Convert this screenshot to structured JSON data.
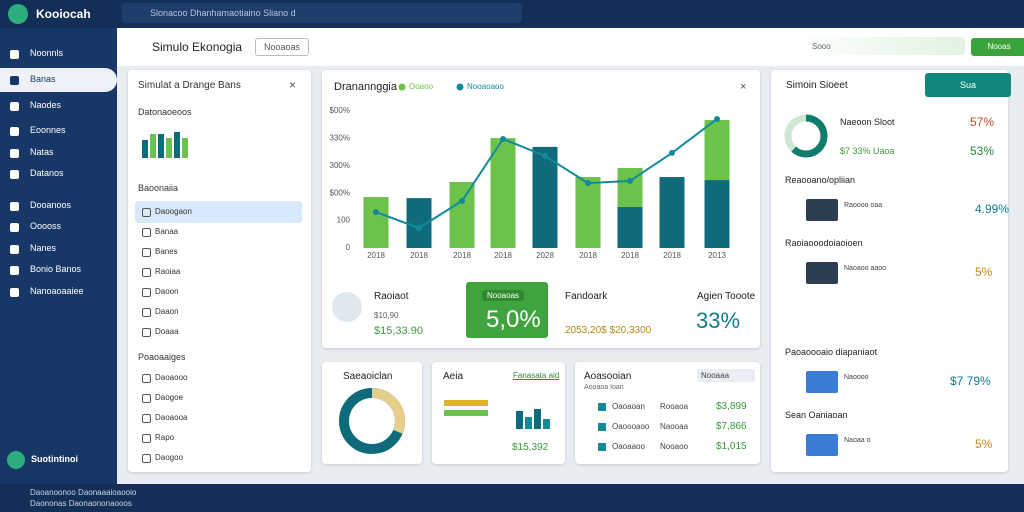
{
  "sidebar": {
    "logo": "Kooiocah",
    "nav": [
      "Noonnls",
      "Banas",
      "Naodes",
      "Eoonnes",
      "Natas",
      "Datanos",
      "Dooanoos",
      "Ooooss",
      "Nanes",
      "Bonio Banos",
      "Nanoaoaaiee"
    ],
    "footer_item": "Suotintinoi"
  },
  "topbar": {
    "search": "Slonacoo Dhanhamaotiaino Sliano d"
  },
  "header": {
    "title": "Simulo Ekonogia",
    "button": "Nooaoas",
    "search": "Sooo",
    "action": "Nooas"
  },
  "left_panel": {
    "title": "Simulat a Drange Bans",
    "section1": "Datonaoeoos",
    "section2": "Baoonaiia",
    "items": [
      "Daoogaon",
      "Banaa",
      "Banes",
      "Raoiaa",
      "Daoon",
      "Daaon",
      "Doaaa"
    ],
    "section3": "Poaoaaiges",
    "items2": [
      "Daoaooo",
      "Daogoe",
      "Daoaooa",
      "Rapo",
      "Daogoo"
    ]
  },
  "chart_data": {
    "type": "bar",
    "title": "Dranannggia",
    "categories": [
      "2018",
      "2018",
      "2018",
      "2018",
      "2028",
      "2018",
      "2018",
      "2018",
      "2013"
    ],
    "series": [
      {
        "name": "Ooaoo",
        "color": "#6cc24a",
        "values": [
          186,
          null,
          241,
          401,
          null,
          259,
          142,
          null,
          219
        ]
      },
      {
        "color": "#0f6b7c",
        "values": [
          null,
          182,
          null,
          null,
          369,
          null,
          150,
          259,
          248
        ]
      },
      {
        "name": "Nooaoaoo",
        "color": "#138a9a",
        "kind": "line",
        "values": [
          131,
          73,
          172,
          398,
          336,
          237,
          245,
          347,
          471
        ]
      }
    ],
    "ylim": [
      0,
      500
    ],
    "yticks": [
      0,
      100,
      {
        "value": 200,
        "label": "$00%"
      },
      {
        "value": 300,
        "label": "300%"
      },
      {
        "value": 400,
        "label": "330%"
      },
      {
        "value": 500,
        "label": "$00%"
      }
    ]
  },
  "stats": [
    {
      "label": "Raoiaot",
      "value": "$15,33.90",
      "sub": "$10,90"
    },
    {
      "label": "Nooaoas",
      "value": "5,0%"
    },
    {
      "label": "Fandoark",
      "value": "2053,20$ $20,3300"
    },
    {
      "label": "Agien Tooote",
      "value": "33%"
    }
  ],
  "cards": {
    "donut": "Saeaoiclan",
    "area": {
      "title": "Aeia",
      "link": "Fanasata aid",
      "value": "$15,392"
    },
    "accounts": {
      "title": "Aoasooian",
      "select": "Nooaaa",
      "sub": "Aooaoa Ioan",
      "rows": [
        [
          "Oaoaoan",
          "Rooaoa",
          "$3,899"
        ],
        [
          "Oaoooaoo",
          "Naooaa",
          "$7,866"
        ],
        [
          "Oaoaaoo",
          "Nooaoo",
          "$1,015"
        ]
      ]
    }
  },
  "right_panel": {
    "title": "Simoin Sioeet",
    "button": "Sua",
    "summary": {
      "label": "Naeoon Sloot",
      "sub": "$7 33% Uaoa",
      "v1": "57%",
      "v2": "53%"
    },
    "sections": [
      {
        "title": "Reaooano/opliian",
        "line": "Raoooo oaa",
        "value": "4.99%"
      },
      {
        "title": "Raoiaooodoiaoioen",
        "line": "Naoaoo aaoo",
        "value": "5%"
      },
      {
        "title": "Paoaoooaio diapaniaot",
        "line": "Naoooo",
        "value": "$7 79%"
      },
      {
        "title": "Sean Oaniaoan",
        "line": "Naoaa o",
        "value": "5%"
      }
    ]
  },
  "footer": {
    "lines": [
      "Daoanoonoo Daonaaaioaooio",
      "Daononas Daonaononaooos"
    ]
  }
}
